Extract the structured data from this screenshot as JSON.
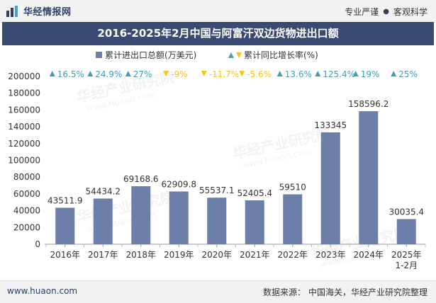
{
  "header": {
    "brand": "华经情报网",
    "slogan": [
      "专业严谨",
      "客观科学"
    ],
    "slogan_sep": "●"
  },
  "colors": {
    "banner": "#3a4b73",
    "bar": "#6b7fa8",
    "up": "#3e9fb5",
    "down": "#f5c518"
  },
  "chart_data": {
    "type": "bar",
    "title": "2016-2025年2月中国与阿富汗双边货物进出口额",
    "categories": [
      "2016年",
      "2017年",
      "2018年",
      "2019年",
      "2020年",
      "2021年",
      "2022年",
      "2023年",
      "2024年",
      "2025年\n1-2月"
    ],
    "series": [
      {
        "name": "累计进出口总额(万美元)",
        "values": [
          43511.9,
          54434.2,
          69168.6,
          62909.8,
          55537.1,
          52405.4,
          59510,
          133345,
          158596.2,
          30035.4
        ],
        "labels": [
          "43511.9",
          "54434.2",
          "69168.6",
          "62909.8",
          "55537.1",
          "52405.4",
          "59510",
          "133345",
          "158596.2",
          "30035.4"
        ]
      },
      {
        "name": "累计同比增长率(%)",
        "values": [
          16.5,
          24.9,
          27,
          -9,
          -11.7,
          -5.6,
          13.6,
          125.4,
          19,
          25
        ],
        "labels": [
          "16.5%",
          "24.9%",
          "27%",
          "-9%",
          "-11.7%",
          "-5.6%",
          "13.6%",
          "125.4%",
          "19%",
          "25%"
        ]
      }
    ],
    "ylim": [
      0,
      200000
    ],
    "yticks": [
      0,
      20000,
      40000,
      60000,
      80000,
      100000,
      120000,
      140000,
      160000,
      180000,
      200000
    ],
    "ytick_labels": [
      "0",
      "20000",
      "40000",
      "60000",
      "80000",
      "100000",
      "120000",
      "140000",
      "160000",
      "180000",
      "200000"
    ],
    "legend_position": "top",
    "grid": false
  },
  "watermark": "华经产业研究院",
  "watermark_url": "www.huaon.com",
  "footer": {
    "url": "www.huaon.com",
    "source_prefix": "数据来源：",
    "source": "中国海关，华经产业研究院整理"
  }
}
